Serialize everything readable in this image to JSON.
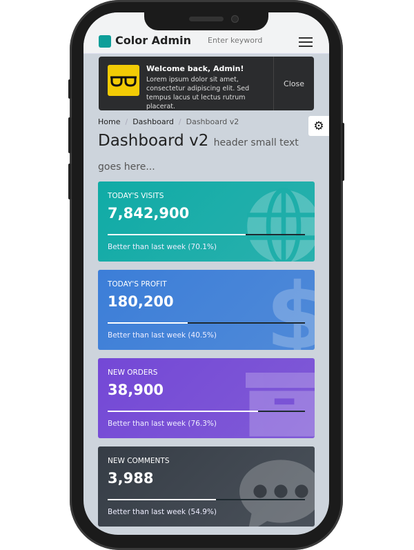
{
  "header": {
    "logo": "Color Admin",
    "search_placeholder": "Enter keyword"
  },
  "toast": {
    "title": "Welcome back, Admin!",
    "message": "Lorem ipsum dolor sit amet, consectetur adipiscing elit. Sed tempus lacus ut lectus rutrum placerat.",
    "close": "Close"
  },
  "breadcrumb": [
    "Home",
    "Dashboard",
    "Dashboard v2"
  ],
  "page": {
    "title": "Dashboard v2",
    "subtitle": "header small text goes here..."
  },
  "cards": [
    {
      "label": "TODAY'S VISITS",
      "value": "7,842,900",
      "progress": 70.1,
      "desc": "Better than last week (70.1%)",
      "color": "#10aba6",
      "icon": "globe-icon"
    },
    {
      "label": "TODAY'S PROFIT",
      "value": "180,200",
      "progress": 40.5,
      "desc": "Better than last week (40.5%)",
      "color": "#3c7ed8",
      "icon": "dollar-icon"
    },
    {
      "label": "NEW ORDERS",
      "value": "38,900",
      "progress": 76.3,
      "desc": "Better than last week (76.3%)",
      "color": "#7448d6",
      "icon": "archive-icon"
    },
    {
      "label": "NEW COMMENTS",
      "value": "3,988",
      "progress": 54.9,
      "desc": "Better than last week (54.9%)",
      "color": "#363d46",
      "icon": "comment-icon"
    }
  ]
}
